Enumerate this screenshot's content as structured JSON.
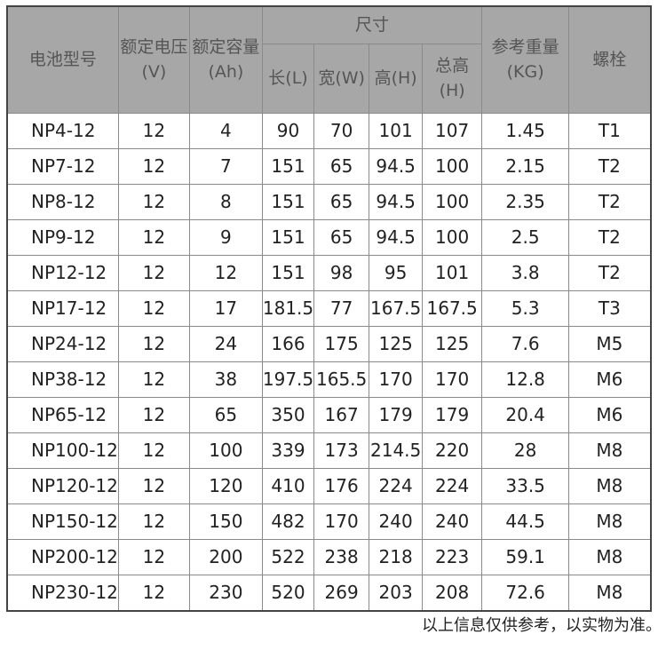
{
  "headers": {
    "model": "电池型号",
    "voltage": "额定电压\n(V)",
    "capacity": "额定容量\n(Ah)",
    "size": "尺寸",
    "length": "长(L)",
    "width": "宽(W)",
    "height": "高(H)",
    "total_height": "总高\n(H)",
    "weight": "参考重量\n(KG)",
    "bolt": "螺栓"
  },
  "rows": [
    [
      "NP4-12",
      "12",
      "4",
      "90",
      "70",
      "101",
      "107",
      "1.45",
      "T1"
    ],
    [
      "NP7-12",
      "12",
      "7",
      "151",
      "65",
      "94.5",
      "100",
      "2.15",
      "T2"
    ],
    [
      "NP8-12",
      "12",
      "8",
      "151",
      "65",
      "94.5",
      "100",
      "2.35",
      "T2"
    ],
    [
      "NP9-12",
      "12",
      "9",
      "151",
      "65",
      "94.5",
      "100",
      "2.5",
      "T2"
    ],
    [
      "NP12-12",
      "12",
      "12",
      "151",
      "98",
      "95",
      "101",
      "3.8",
      "T2"
    ],
    [
      "NP17-12",
      "12",
      "17",
      "181.5",
      "77",
      "167.5",
      "167.5",
      "5.3",
      "T3"
    ],
    [
      "NP24-12",
      "12",
      "24",
      "166",
      "175",
      "125",
      "125",
      "7.6",
      "M5"
    ],
    [
      "NP38-12",
      "12",
      "38",
      "197.5",
      "165.5",
      "170",
      "170",
      "12.8",
      "M6"
    ],
    [
      "NP65-12",
      "12",
      "65",
      "350",
      "167",
      "179",
      "179",
      "20.4",
      "M6"
    ],
    [
      "NP100-12",
      "12",
      "100",
      "339",
      "173",
      "214.5",
      "220",
      "28",
      "M8"
    ],
    [
      "NP120-12",
      "12",
      "120",
      "410",
      "176",
      "224",
      "224",
      "33.5",
      "M8"
    ],
    [
      "NP150-12",
      "12",
      "150",
      "482",
      "170",
      "240",
      "240",
      "44.5",
      "M8"
    ],
    [
      "NP200-12",
      "12",
      "200",
      "522",
      "238",
      "218",
      "223",
      "59.1",
      "M8"
    ],
    [
      "NP230-12",
      "12",
      "230",
      "520",
      "269",
      "203",
      "208",
      "72.6",
      "M8"
    ]
  ],
  "caption": "以上信息仅供参考，以实物为准。"
}
